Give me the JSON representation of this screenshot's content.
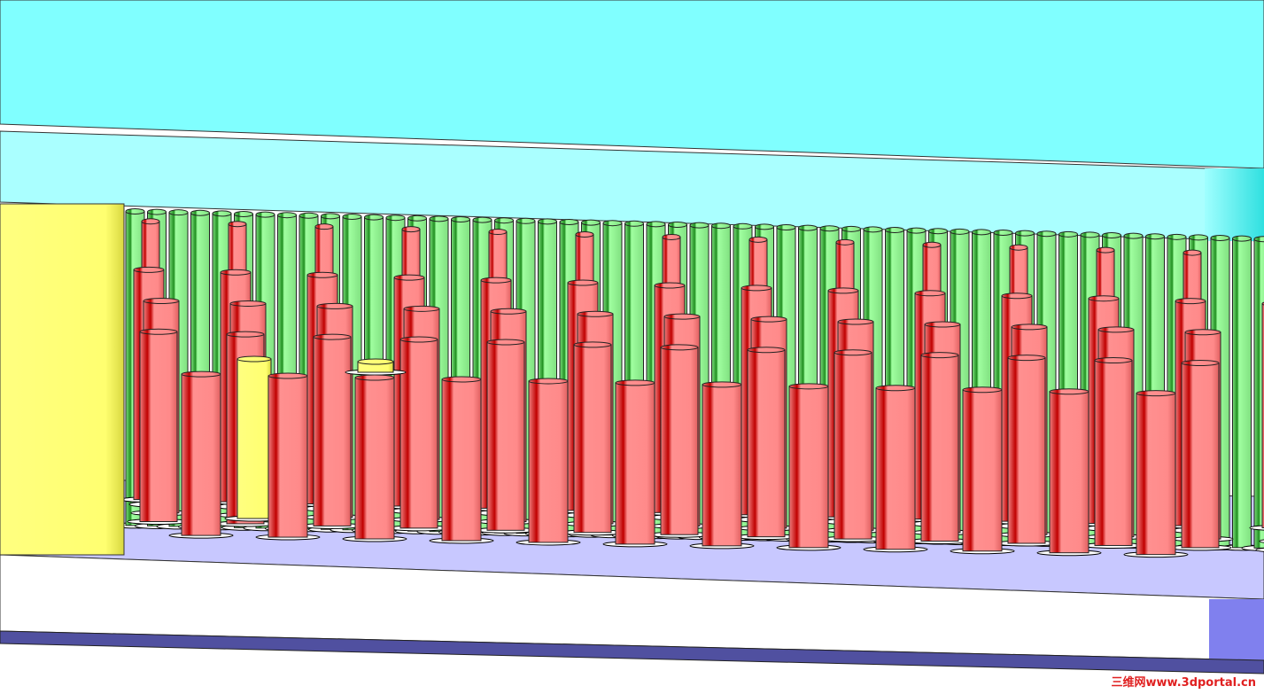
{
  "watermark": "三维网www.3dportal.cn"
}
